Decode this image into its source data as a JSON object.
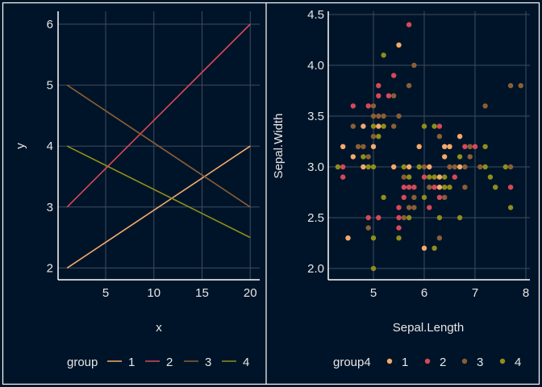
{
  "colors": {
    "background": "#001429",
    "grid": "#3d4c5e",
    "text": "#e6e6e6",
    "group1": "#F4A96A",
    "group2": "#D64958",
    "group3": "#8B5E34",
    "group4": "#8E8E1A"
  },
  "chart_data": [
    {
      "type": "line",
      "xlabel": "x",
      "ylabel": "y",
      "xlim": [
        0.1,
        21
      ],
      "ylim": [
        1.8,
        6.2
      ],
      "xticks": [
        "5",
        "10",
        "15",
        "20"
      ],
      "xtick_values": [
        5,
        10,
        15,
        20
      ],
      "yticks": [
        "2",
        "3",
        "4",
        "5",
        "6"
      ],
      "ytick_values": [
        2,
        3,
        4,
        5,
        6
      ],
      "grid": true,
      "legend": {
        "title": "group",
        "position": "bottom",
        "labels": [
          "1",
          "2",
          "3",
          "4"
        ]
      },
      "series": [
        {
          "name": "1",
          "x": [
            1,
            20
          ],
          "y": [
            2,
            4
          ]
        },
        {
          "name": "2",
          "x": [
            1,
            20
          ],
          "y": [
            3,
            6
          ]
        },
        {
          "name": "3",
          "x": [
            1,
            20
          ],
          "y": [
            5,
            3
          ]
        },
        {
          "name": "4",
          "x": [
            1,
            20
          ],
          "y": [
            4,
            2.5
          ]
        }
      ]
    },
    {
      "type": "scatter",
      "xlabel": "Sepal.Length",
      "ylabel": "Sepal.Width",
      "xlim": [
        4.2,
        8.0
      ],
      "ylim": [
        1.9,
        4.5
      ],
      "xticks": [
        "5",
        "6",
        "7",
        "8"
      ],
      "xtick_values": [
        5,
        6,
        7,
        8
      ],
      "yticks": [
        "2.0",
        "2.5",
        "3.0",
        "3.5",
        "4.0",
        "4.5"
      ],
      "ytick_values": [
        2.0,
        2.5,
        3.0,
        3.5,
        4.0,
        4.5
      ],
      "grid": true,
      "legend": {
        "title": "group4",
        "position": "bottom",
        "labels": [
          "1",
          "2",
          "3",
          "4"
        ]
      },
      "points": [
        [
          5.7,
          4.4,
          2
        ],
        [
          5.5,
          4.2,
          1
        ],
        [
          5.2,
          4.1,
          4
        ],
        [
          5.8,
          4.0,
          3
        ],
        [
          5.4,
          3.9,
          2
        ],
        [
          5.1,
          3.8,
          2
        ],
        [
          5.7,
          3.8,
          3
        ],
        [
          7.7,
          3.8,
          3
        ],
        [
          7.9,
          3.8,
          3
        ],
        [
          5.1,
          3.7,
          2
        ],
        [
          5.3,
          3.7,
          2
        ],
        [
          5.4,
          3.7,
          3
        ],
        [
          4.6,
          3.6,
          2
        ],
        [
          4.9,
          3.6,
          2
        ],
        [
          5.0,
          3.6,
          3
        ],
        [
          7.2,
          3.6,
          3
        ],
        [
          5.0,
          3.5,
          3
        ],
        [
          5.1,
          3.5,
          3
        ],
        [
          5.2,
          3.5,
          3
        ],
        [
          5.5,
          3.5,
          3
        ],
        [
          4.6,
          3.4,
          3
        ],
        [
          4.8,
          3.4,
          1
        ],
        [
          5.0,
          3.4,
          4
        ],
        [
          5.1,
          3.4,
          1
        ],
        [
          5.2,
          3.4,
          4
        ],
        [
          5.4,
          3.4,
          3
        ],
        [
          6.0,
          3.4,
          4
        ],
        [
          6.2,
          3.4,
          4
        ],
        [
          6.3,
          3.4,
          2
        ],
        [
          5.0,
          3.3,
          3
        ],
        [
          5.1,
          3.3,
          4
        ],
        [
          6.3,
          3.3,
          3
        ],
        [
          6.7,
          3.3,
          1
        ],
        [
          4.4,
          3.2,
          1
        ],
        [
          4.7,
          3.2,
          3
        ],
        [
          4.8,
          3.2,
          3
        ],
        [
          5.0,
          3.2,
          1
        ],
        [
          5.9,
          3.2,
          1
        ],
        [
          6.4,
          3.2,
          1
        ],
        [
          6.5,
          3.2,
          1
        ],
        [
          6.8,
          3.2,
          2
        ],
        [
          6.9,
          3.2,
          3
        ],
        [
          7.0,
          3.2,
          2
        ],
        [
          7.2,
          3.2,
          4
        ],
        [
          4.6,
          3.1,
          1
        ],
        [
          4.8,
          3.1,
          4
        ],
        [
          4.9,
          3.1,
          3
        ],
        [
          6.4,
          3.1,
          1
        ],
        [
          6.7,
          3.1,
          4
        ],
        [
          6.9,
          3.1,
          3
        ],
        [
          4.3,
          3.0,
          4
        ],
        [
          4.4,
          3.0,
          2
        ],
        [
          4.8,
          3.0,
          1
        ],
        [
          4.9,
          3.0,
          4
        ],
        [
          5.0,
          3.0,
          4
        ],
        [
          5.4,
          3.0,
          1
        ],
        [
          5.6,
          3.0,
          4
        ],
        [
          5.7,
          3.0,
          1
        ],
        [
          5.9,
          3.0,
          4
        ],
        [
          6.0,
          3.0,
          3
        ],
        [
          6.1,
          3.0,
          1
        ],
        [
          6.5,
          3.0,
          3
        ],
        [
          6.6,
          3.0,
          3
        ],
        [
          6.7,
          3.0,
          1
        ],
        [
          6.8,
          3.0,
          3
        ],
        [
          7.1,
          3.0,
          3
        ],
        [
          7.2,
          3.0,
          4
        ],
        [
          7.6,
          3.0,
          4
        ],
        [
          7.7,
          3.0,
          3
        ],
        [
          4.4,
          2.9,
          2
        ],
        [
          5.6,
          2.9,
          3
        ],
        [
          5.7,
          2.9,
          4
        ],
        [
          6.0,
          2.9,
          2
        ],
        [
          6.1,
          2.9,
          4
        ],
        [
          6.2,
          2.9,
          4
        ],
        [
          6.3,
          2.9,
          1
        ],
        [
          6.4,
          2.9,
          4
        ],
        [
          6.6,
          2.9,
          2
        ],
        [
          7.3,
          2.9,
          4
        ],
        [
          5.6,
          2.8,
          2
        ],
        [
          5.7,
          2.8,
          2
        ],
        [
          5.8,
          2.8,
          2
        ],
        [
          6.1,
          2.8,
          3
        ],
        [
          6.2,
          2.8,
          2
        ],
        [
          6.3,
          2.8,
          1
        ],
        [
          6.4,
          2.8,
          4
        ],
        [
          6.5,
          2.8,
          4
        ],
        [
          6.8,
          2.8,
          3
        ],
        [
          7.4,
          2.8,
          4
        ],
        [
          7.7,
          2.8,
          2
        ],
        [
          5.2,
          2.7,
          4
        ],
        [
          5.6,
          2.7,
          2
        ],
        [
          5.8,
          2.7,
          3
        ],
        [
          6.0,
          2.7,
          4
        ],
        [
          6.3,
          2.7,
          2
        ],
        [
          6.4,
          2.7,
          3
        ],
        [
          5.5,
          2.6,
          2
        ],
        [
          5.7,
          2.6,
          3
        ],
        [
          5.8,
          2.6,
          3
        ],
        [
          6.1,
          2.6,
          2
        ],
        [
          7.7,
          2.6,
          4
        ],
        [
          4.9,
          2.5,
          2
        ],
        [
          5.1,
          2.5,
          2
        ],
        [
          5.5,
          2.5,
          2
        ],
        [
          5.6,
          2.5,
          3
        ],
        [
          5.7,
          2.5,
          4
        ],
        [
          6.3,
          2.5,
          4
        ],
        [
          6.7,
          2.5,
          4
        ],
        [
          4.9,
          2.4,
          3
        ],
        [
          5.5,
          2.4,
          2
        ],
        [
          4.5,
          2.3,
          1
        ],
        [
          5.0,
          2.3,
          4
        ],
        [
          5.5,
          2.3,
          4
        ],
        [
          6.3,
          2.3,
          3
        ],
        [
          6.0,
          2.2,
          1
        ],
        [
          6.2,
          2.2,
          4
        ],
        [
          5.0,
          2.0,
          4
        ]
      ]
    }
  ]
}
